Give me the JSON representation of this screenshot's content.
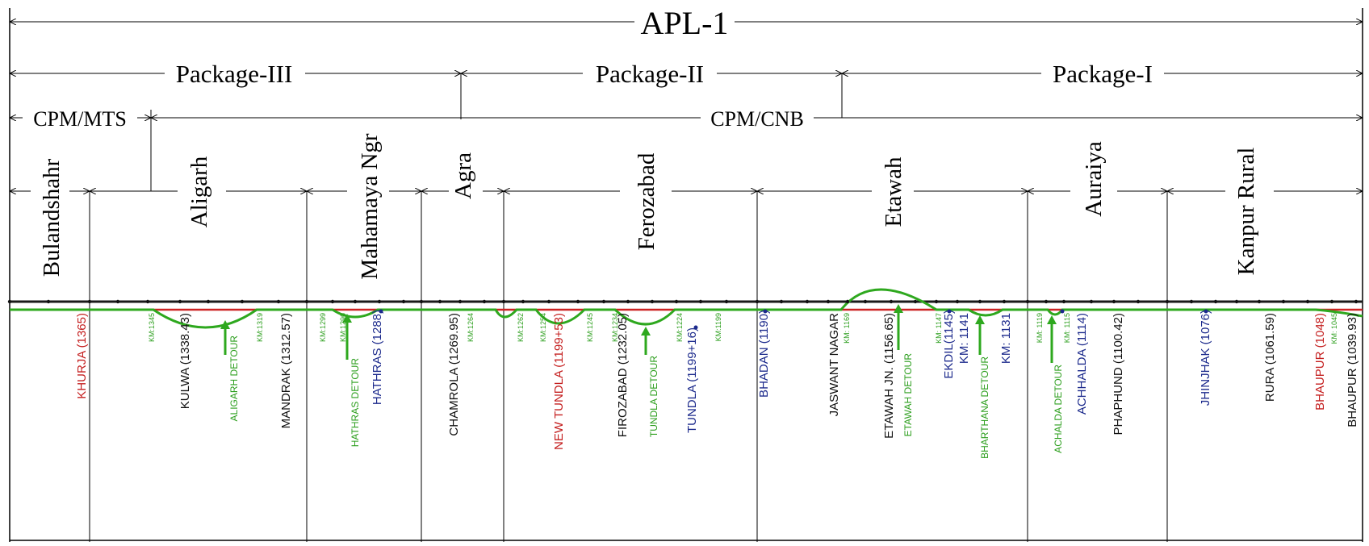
{
  "colors": {
    "ink": "#000000",
    "track": "#1a1a1a",
    "red_line": "#cc2222",
    "green_line": "#2ea81e",
    "green_text": "#2b9e1c",
    "blue_text": "#1c2a8c",
    "red_text": "#c41e1e",
    "black_text": "#111111"
  },
  "headers": {
    "apl": "APL-1",
    "packages": [
      "Package-III",
      "Package-II",
      "Package-I"
    ],
    "divisions": [
      "CPM/MTS",
      "CPM/CNB"
    ]
  },
  "districts": [
    "Bulandshahr",
    "Aligarh",
    "Mahamaya Ngr",
    "Agra",
    "Ferozabad",
    "Etawah",
    "Auraiya",
    "Kanpur Rural"
  ],
  "stations": [
    {
      "label": "KHURJA (1365)",
      "kind": "red"
    },
    {
      "label": "KM:1345",
      "kind": "km"
    },
    {
      "label": "KULWA (1338.43)",
      "kind": "black"
    },
    {
      "label": "ALIGARH DETOUR",
      "kind": "detour"
    },
    {
      "label": "KM:1319",
      "kind": "km"
    },
    {
      "label": "MANDRAK (1312.57)",
      "kind": "black"
    },
    {
      "label": "KM:1299",
      "kind": "km"
    },
    {
      "label": "HATHRAS DETOUR",
      "kind": "detour"
    },
    {
      "label": "KM:1290",
      "kind": "km"
    },
    {
      "label": "HATHRAS (1288)",
      "kind": "blue"
    },
    {
      "label": "CHAMROLA (1269.95)",
      "kind": "black"
    },
    {
      "label": "KM:1264",
      "kind": "km"
    },
    {
      "label": "KM:1262",
      "kind": "km"
    },
    {
      "label": "KM:1254",
      "kind": "km"
    },
    {
      "label": "NEW TUNDLA (1199+53)",
      "kind": "red"
    },
    {
      "label": "KM:1245",
      "kind": "km"
    },
    {
      "label": "KM:1234",
      "kind": "km"
    },
    {
      "label": "FIROZABAD (1232.05)",
      "kind": "black"
    },
    {
      "label": "TUNDLA DETOUR",
      "kind": "detour"
    },
    {
      "label": "KM:1224",
      "kind": "km"
    },
    {
      "label": "TUNDLA (1199+16)",
      "kind": "blue"
    },
    {
      "label": "KM:1199",
      "kind": "km"
    },
    {
      "label": "BHADAN (1190)",
      "kind": "blue"
    },
    {
      "label": "JASWANT NAGAR",
      "kind": "black"
    },
    {
      "label": "KM: 1169",
      "kind": "km"
    },
    {
      "label": "ETAWAH JN. (1156.65)",
      "kind": "black"
    },
    {
      "label": "ETAWAH DETOUR",
      "kind": "detour"
    },
    {
      "label": "KM: 1147",
      "kind": "km"
    },
    {
      "label": "EKDIL(1145)",
      "kind": "blue"
    },
    {
      "label": "KM: 1141",
      "kind": "bluekm"
    },
    {
      "label": "BHARTHANA DETOUR",
      "kind": "detour"
    },
    {
      "label": "KM: 1131",
      "kind": "bluekm"
    },
    {
      "label": "KM: 1119",
      "kind": "km"
    },
    {
      "label": "ACHALDA DETOUR",
      "kind": "detour"
    },
    {
      "label": "KM: 1115",
      "kind": "km"
    },
    {
      "label": "ACHHALDA (1114)",
      "kind": "blue"
    },
    {
      "label": "PHAPHUND (1100.42)",
      "kind": "black"
    },
    {
      "label": "JHINJHAK (1076)",
      "kind": "blue"
    },
    {
      "label": "RURA (1061.59)",
      "kind": "black"
    },
    {
      "label": "BHAUPUR (1048)",
      "kind": "red"
    },
    {
      "label": "KM: 1045",
      "kind": "km"
    },
    {
      "label": "BHAUPUR (1039.93)",
      "kind": "black"
    }
  ]
}
